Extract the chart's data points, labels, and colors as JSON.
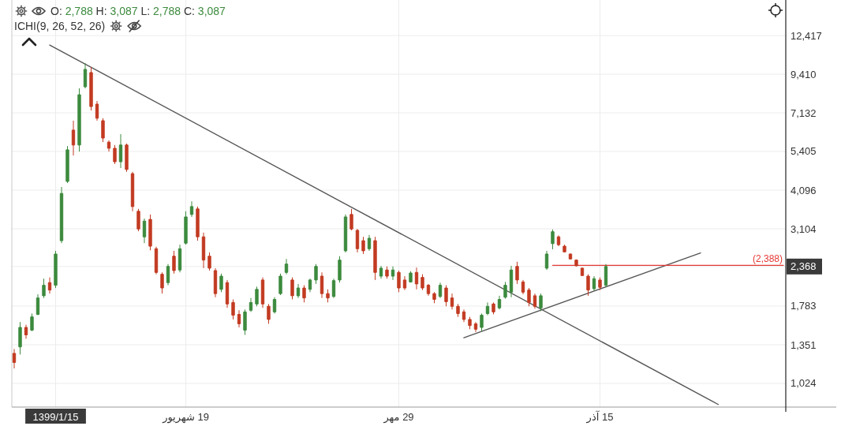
{
  "chart_data": {
    "type": "candlestick",
    "annotations": [
      "O: 2,788 H: 3,087 L: 2,788 C: 3,087",
      "ICHI(9, 26, 52, 26)"
    ],
    "log": true,
    "grid": true,
    "categories": [
      null,
      null,
      null,
      null,
      null,
      null,
      null,
      "1399/1/15",
      null,
      null,
      null,
      null,
      null,
      null,
      null,
      null,
      null,
      null,
      null,
      null,
      null,
      null,
      null,
      null,
      null,
      null,
      null,
      null,
      null,
      "19 شهریور",
      null,
      null,
      null,
      null,
      null,
      null,
      null,
      null,
      null,
      null,
      null,
      null,
      null,
      null,
      null,
      null,
      null,
      null,
      null,
      null,
      null,
      null,
      null,
      null,
      null,
      null,
      null,
      null,
      null,
      null,
      null,
      null,
      null,
      null,
      null,
      "29 مهر",
      null,
      null,
      null,
      null,
      null,
      null,
      null,
      null,
      null,
      null,
      null,
      null,
      null,
      null,
      null,
      null,
      null,
      null,
      null,
      null,
      null,
      null,
      null,
      null,
      null,
      null,
      null,
      null,
      null,
      null,
      null,
      null,
      null,
      "15 آذر",
      null,
      null,
      null,
      null,
      null,
      null,
      null,
      null,
      null,
      null,
      null,
      null,
      null,
      null,
      null,
      null,
      null,
      null,
      null,
      null,
      null,
      null,
      null,
      null,
      null,
      null,
      null,
      null,
      null,
      null,
      null
    ],
    "ylim": [
      864,
      16020
    ],
    "yticks": [
      {
        "value": 1024,
        "label": "1,024"
      },
      {
        "value": 1351,
        "label": "1,351"
      },
      {
        "value": 1783,
        "label": "1,783"
      },
      {
        "value": 2368,
        "label": "2,368"
      },
      {
        "value": 3104,
        "label": "3,104"
      },
      {
        "value": 4096,
        "label": "4,096"
      },
      {
        "value": 5405,
        "label": "5,405"
      },
      {
        "value": 7132,
        "label": "7,132"
      },
      {
        "value": 9410,
        "label": "9,410"
      },
      {
        "value": 12417,
        "label": "12,417"
      }
    ],
    "series": [
      {
        "ohlc": [
          [
            1270,
            1310,
            1140,
            1190
          ],
          [
            1330,
            1590,
            1260,
            1530
          ],
          [
            1530,
            1560,
            1410,
            1450
          ],
          [
            1500,
            1690,
            1490,
            1650
          ],
          [
            1680,
            1940,
            1670,
            1890
          ],
          [
            1920,
            2170,
            1890,
            2070
          ],
          [
            2110,
            2190,
            1950,
            2000
          ],
          [
            2070,
            2650,
            2030,
            2590
          ],
          [
            2850,
            4190,
            2800,
            4000
          ],
          [
            4360,
            5620,
            4310,
            5470
          ],
          [
            6300,
            6740,
            5250,
            5660
          ],
          [
            5660,
            8500,
            5400,
            8120
          ],
          [
            8600,
            10190,
            8500,
            9740
          ],
          [
            9520,
            9900,
            7250,
            7460
          ],
          [
            7590,
            7760,
            6740,
            6860
          ],
          [
            6740,
            6860,
            5780,
            5950
          ],
          [
            5780,
            5850,
            5400,
            5530
          ],
          [
            5530,
            5660,
            4940,
            5020
          ],
          [
            5020,
            6120,
            4800,
            5660
          ],
          [
            5660,
            5720,
            4670,
            4750
          ],
          [
            4610,
            4670,
            3520,
            3640
          ],
          [
            3520,
            3580,
            3050,
            3100
          ],
          [
            2930,
            3340,
            2800,
            3280
          ],
          [
            3320,
            3440,
            2660,
            2740
          ],
          [
            2690,
            2730,
            2240,
            2270
          ],
          [
            2240,
            2270,
            1950,
            2030
          ],
          [
            2110,
            2410,
            2070,
            2370
          ],
          [
            2550,
            2650,
            2250,
            2300
          ],
          [
            2310,
            2770,
            2270,
            2690
          ],
          [
            2800,
            3520,
            2770,
            3380
          ],
          [
            3440,
            3780,
            3380,
            3640
          ],
          [
            3580,
            3640,
            2850,
            2930
          ],
          [
            2930,
            3020,
            2340,
            2480
          ],
          [
            2550,
            2620,
            2300,
            2340
          ],
          [
            2300,
            2340,
            1900,
            1950
          ],
          [
            2010,
            2250,
            1970,
            2210
          ],
          [
            2110,
            2150,
            1760,
            1810
          ],
          [
            1830,
            1870,
            1620,
            1670
          ],
          [
            1680,
            1730,
            1530,
            1570
          ],
          [
            1500,
            1740,
            1450,
            1710
          ],
          [
            1730,
            1890,
            1710,
            1830
          ],
          [
            1810,
            2050,
            1780,
            2010
          ],
          [
            2150,
            2190,
            1760,
            1810
          ],
          [
            1780,
            1810,
            1570,
            1620
          ],
          [
            1710,
            1900,
            1690,
            1870
          ],
          [
            1950,
            2250,
            1930,
            2210
          ],
          [
            2270,
            2500,
            2240,
            2410
          ],
          [
            2150,
            2190,
            1870,
            1920
          ],
          [
            1920,
            2090,
            1890,
            2030
          ],
          [
            2030,
            2070,
            1830,
            1890
          ],
          [
            2010,
            2170,
            1970,
            2150
          ],
          [
            2150,
            2410,
            2090,
            2370
          ],
          [
            2210,
            2270,
            1890,
            1950
          ],
          [
            1950,
            2010,
            1830,
            1890
          ],
          [
            1910,
            2170,
            1890,
            2140
          ],
          [
            2150,
            2550,
            2110,
            2480
          ],
          [
            2650,
            3440,
            2620,
            3380
          ],
          [
            3440,
            3580,
            3070,
            3100
          ],
          [
            3070,
            3100,
            2620,
            2690
          ],
          [
            2850,
            2930,
            2590,
            2650
          ],
          [
            2690,
            2970,
            2650,
            2900
          ],
          [
            2850,
            2930,
            2150,
            2270
          ],
          [
            2210,
            2380,
            2170,
            2340
          ],
          [
            2310,
            2370,
            2170,
            2210
          ],
          [
            2210,
            2370,
            2150,
            2310
          ],
          [
            2270,
            2300,
            1970,
            2030
          ],
          [
            2150,
            2210,
            2000,
            2030
          ],
          [
            2120,
            2290,
            2110,
            2260
          ],
          [
            2270,
            2350,
            2010,
            2090
          ],
          [
            2190,
            2240,
            2000,
            2030
          ],
          [
            2070,
            2090,
            1920,
            1950
          ],
          [
            1950,
            1970,
            1820,
            1870
          ],
          [
            1910,
            2110,
            1890,
            2070
          ],
          [
            2030,
            2070,
            1780,
            1840
          ],
          [
            1890,
            1950,
            1740,
            1780
          ],
          [
            1780,
            1810,
            1650,
            1690
          ],
          [
            1710,
            1740,
            1590,
            1620
          ],
          [
            1620,
            1650,
            1510,
            1550
          ],
          [
            1570,
            1590,
            1480,
            1510
          ],
          [
            1530,
            1690,
            1490,
            1670
          ],
          [
            1690,
            1830,
            1670,
            1780
          ],
          [
            1810,
            1830,
            1680,
            1710
          ],
          [
            1760,
            1920,
            1740,
            1870
          ],
          [
            1900,
            2120,
            1880,
            2070
          ],
          [
            1970,
            2380,
            1900,
            2310
          ],
          [
            2370,
            2450,
            2090,
            2150
          ],
          [
            2120,
            2150,
            1940,
            1970
          ],
          [
            2000,
            2030,
            1780,
            1830
          ],
          [
            1920,
            1950,
            1750,
            1780
          ],
          [
            1760,
            1950,
            1720,
            1920
          ],
          [
            2340,
            2650,
            2310,
            2590
          ],
          [
            2790,
            3090,
            2680,
            3040
          ],
          [
            2930,
            2960,
            2740,
            2770
          ],
          [
            2740,
            2770,
            2620,
            2630
          ],
          [
            2590,
            2600,
            2490,
            2500
          ],
          [
            2480,
            2490,
            2370,
            2380
          ],
          [
            2340,
            2350,
            2210,
            2220
          ],
          [
            2210,
            2240,
            1920,
            2000
          ],
          [
            2020,
            2210,
            1990,
            2170
          ],
          [
            2150,
            2190,
            2000,
            2040
          ],
          [
            2070,
            2410,
            2040,
            2368
          ],
          null,
          null,
          null,
          null,
          null,
          null,
          null,
          null,
          null,
          null,
          null,
          null,
          null,
          null,
          null,
          null,
          null,
          null,
          null,
          null,
          null,
          null,
          null,
          null,
          null,
          null,
          null,
          null,
          null,
          null
        ],
        "colors": [
          "#c23b22",
          "#3c8a3e",
          "#c23b22",
          "#3c8a3e",
          "#3c8a3e",
          "#3c8a3e",
          "#c23b22",
          "#3c8a3e",
          "#3c8a3e",
          "#3c8a3e",
          "#c23b22",
          "#3c8a3e",
          "#3c8a3e",
          "#c23b22",
          "#c23b22",
          "#c23b22",
          "#c23b22",
          "#c23b22",
          "#3c8a3e",
          "#c23b22",
          "#c23b22",
          "#c23b22",
          "#3c8a3e",
          "#c23b22",
          "#c23b22",
          "#c23b22",
          "#3c8a3e",
          "#c23b22",
          "#3c8a3e",
          "#3c8a3e",
          "#3c8a3e",
          "#c23b22",
          "#c23b22",
          "#c23b22",
          "#c23b22",
          "#3c8a3e",
          "#c23b22",
          "#c23b22",
          "#c23b22",
          "#3c8a3e",
          "#3c8a3e",
          "#3c8a3e",
          "#c23b22",
          "#c23b22",
          "#3c8a3e",
          "#3c8a3e",
          "#3c8a3e",
          "#c23b22",
          "#3c8a3e",
          "#c23b22",
          "#3c8a3e",
          "#3c8a3e",
          "#c23b22",
          "#c23b22",
          "#3c8a3e",
          "#3c8a3e",
          "#3c8a3e",
          "#c23b22",
          "#c23b22",
          "#c23b22",
          "#3c8a3e",
          "#c23b22",
          "#3c8a3e",
          "#c23b22",
          "#3c8a3e",
          "#c23b22",
          "#c23b22",
          "#3c8a3e",
          "#c23b22",
          "#c23b22",
          "#c23b22",
          "#c23b22",
          "#3c8a3e",
          "#c23b22",
          "#c23b22",
          "#c23b22",
          "#c23b22",
          "#c23b22",
          "#c23b22",
          "#3c8a3e",
          "#3c8a3e",
          "#c23b22",
          "#3c8a3e",
          "#3c8a3e",
          "#3c8a3e",
          "#c23b22",
          "#c23b22",
          "#c23b22",
          "#c23b22",
          "#3c8a3e",
          "#3c8a3e",
          "#3c8a3e",
          "#c23b22",
          "#c23b22",
          "#c23b22",
          "#c23b22",
          "#c23b22",
          "#c23b22",
          "#3c8a3e",
          "#c23b22",
          "#3c8a3e",
          null,
          null,
          null,
          null,
          null,
          null,
          null,
          null,
          null,
          null,
          null,
          null,
          null,
          null,
          null,
          null,
          null,
          null,
          null,
          null,
          null,
          null,
          null,
          null,
          null,
          null,
          null,
          null,
          null,
          null
        ]
      },
      {
        "type": "line",
        "color": "#555555",
        "values": [
          null,
          null,
          null,
          null,
          null,
          null,
          11600,
          null,
          null,
          null,
          null,
          null,
          null,
          null,
          null,
          null,
          null,
          null,
          null,
          null,
          null,
          null,
          null,
          null,
          null,
          null,
          null,
          null,
          null,
          null,
          null,
          null,
          null,
          null,
          null,
          null,
          null,
          null,
          null,
          null,
          null,
          null,
          null,
          null,
          null,
          null,
          null,
          null,
          null,
          null,
          null,
          null,
          null,
          null,
          null,
          null,
          null,
          null,
          null,
          null,
          null,
          null,
          null,
          null,
          null,
          null,
          null,
          null,
          null,
          null,
          null,
          null,
          null,
          null,
          null,
          null,
          null,
          null,
          null,
          null,
          null,
          null,
          null,
          null,
          null,
          null,
          null,
          null,
          null,
          null,
          null,
          null,
          null,
          null,
          null,
          null,
          null,
          null,
          null,
          null,
          null,
          null,
          null,
          null,
          null,
          null,
          null,
          null,
          null,
          null,
          null,
          null,
          null,
          null,
          null,
          null,
          null,
          null,
          null,
          880,
          null,
          null,
          null,
          null,
          null,
          null,
          null,
          null,
          null,
          null,
          null
        ]
      },
      {
        "type": "line",
        "color": "#555555",
        "values": [
          null,
          null,
          null,
          null,
          null,
          null,
          null,
          null,
          null,
          null,
          null,
          null,
          null,
          null,
          null,
          null,
          null,
          null,
          null,
          null,
          null,
          null,
          null,
          null,
          null,
          null,
          null,
          null,
          null,
          null,
          null,
          null,
          null,
          null,
          null,
          null,
          null,
          null,
          null,
          null,
          null,
          null,
          null,
          null,
          null,
          null,
          null,
          null,
          null,
          null,
          null,
          null,
          null,
          null,
          null,
          null,
          null,
          null,
          null,
          null,
          null,
          null,
          null,
          null,
          null,
          null,
          null,
          null,
          null,
          null,
          null,
          null,
          null,
          null,
          null,
          null,
          1420,
          null,
          null,
          null,
          null,
          null,
          null,
          null,
          null,
          null,
          null,
          null,
          null,
          null,
          null,
          null,
          null,
          null,
          null,
          null,
          null,
          null,
          null,
          null,
          null,
          null,
          null,
          null,
          null,
          null,
          null,
          null,
          null,
          null,
          null,
          null,
          null,
          null,
          null,
          null,
          2610,
          null,
          null,
          null,
          null,
          null,
          null,
          null,
          null,
          null,
          null,
          null,
          null,
          null,
          null
        ]
      },
      {
        "type": "line",
        "name": "(2,388)",
        "color": "#e53935",
        "values": [
          null,
          null,
          null,
          null,
          null,
          null,
          null,
          null,
          null,
          null,
          null,
          null,
          null,
          null,
          null,
          null,
          null,
          null,
          null,
          null,
          null,
          null,
          null,
          null,
          null,
          null,
          null,
          null,
          null,
          null,
          null,
          null,
          null,
          null,
          null,
          null,
          null,
          null,
          null,
          null,
          null,
          null,
          null,
          null,
          null,
          null,
          null,
          null,
          null,
          null,
          null,
          null,
          null,
          null,
          null,
          null,
          null,
          null,
          null,
          null,
          null,
          null,
          null,
          null,
          null,
          null,
          null,
          null,
          null,
          null,
          null,
          null,
          null,
          null,
          null,
          null,
          null,
          null,
          null,
          null,
          null,
          null,
          null,
          null,
          null,
          null,
          null,
          null,
          null,
          null,
          null,
          2388,
          null,
          null,
          null,
          null,
          null,
          null,
          null,
          null,
          null,
          null,
          null,
          null,
          null,
          null,
          null,
          null,
          null,
          null,
          null,
          null,
          null,
          null,
          null,
          null,
          null,
          null,
          null,
          null,
          null,
          null,
          null,
          null,
          null,
          null,
          null,
          null,
          null,
          null,
          2388
        ]
      }
    ]
  }
}
